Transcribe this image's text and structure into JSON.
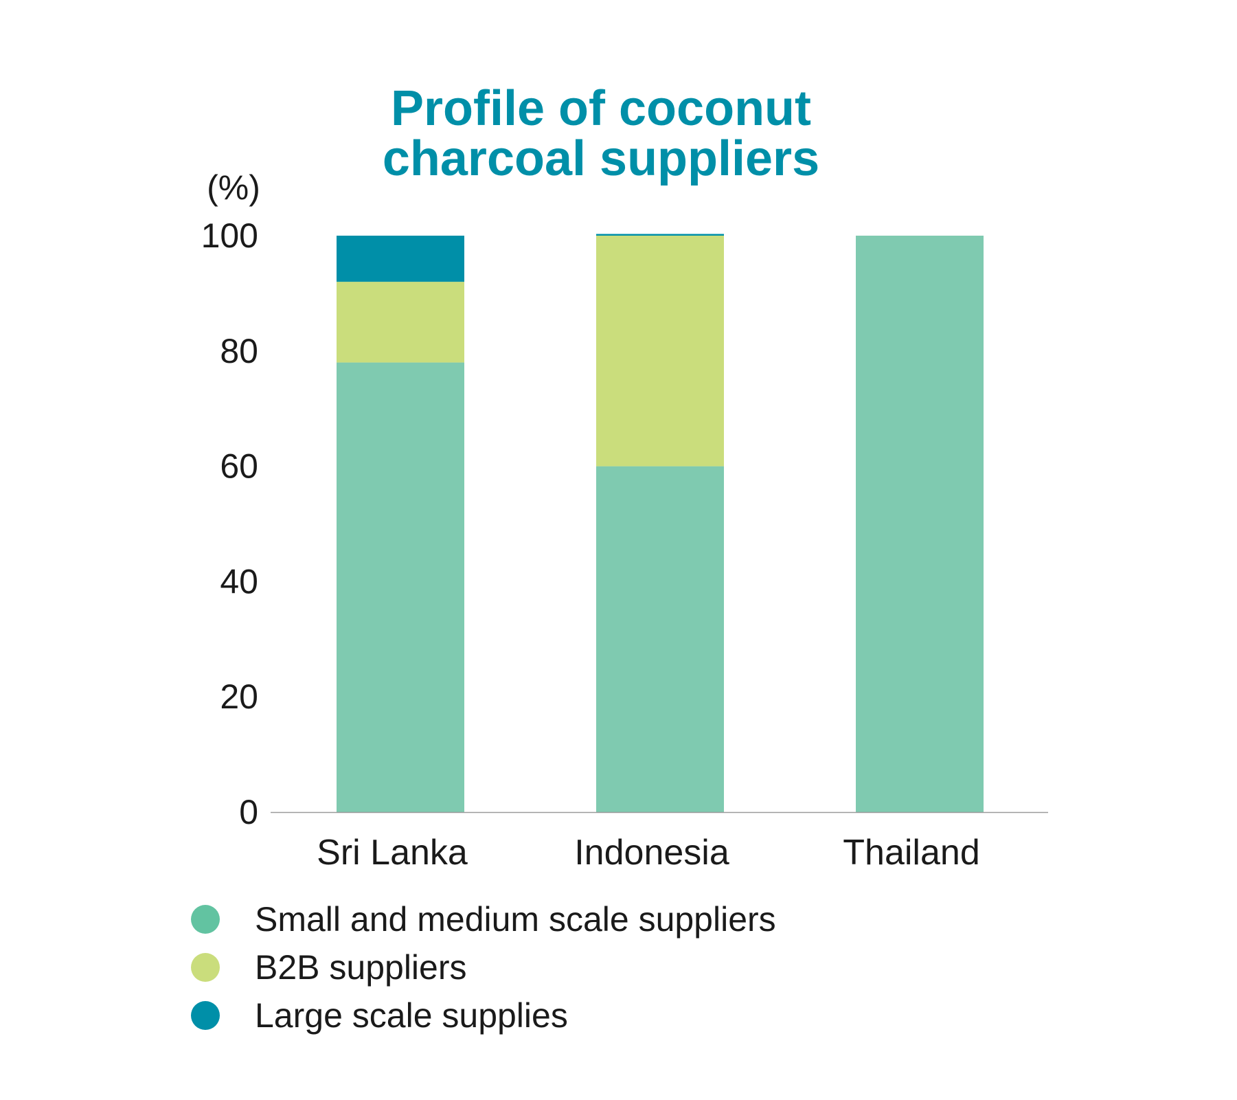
{
  "chart_data": {
    "type": "bar",
    "stacked": true,
    "title": "Profile of coconut charcoal suppliers",
    "title_lines": [
      "Profile of coconut",
      "charcoal suppliers"
    ],
    "ylabel": "(%)",
    "xlabel": "",
    "ylim": [
      0,
      100
    ],
    "yticks": [
      0,
      20,
      40,
      60,
      80,
      100
    ],
    "grid": false,
    "legend_position": "bottom-left",
    "categories": [
      "Sri Lanka",
      "Indonesia",
      "Thailand"
    ],
    "series": [
      {
        "name": "Small and medium scale suppliers",
        "color": "#7fcab0",
        "legend_color": "#62c3a1",
        "values": [
          78,
          60,
          100
        ]
      },
      {
        "name": "B2B suppliers",
        "color": "#cadd7c",
        "legend_color": "#cadd7c",
        "values": [
          14,
          40,
          0
        ]
      },
      {
        "name": "Large scale supplies",
        "color": "#008fa8",
        "legend_color": "#008fa8",
        "values": [
          8,
          0.3,
          0
        ]
      }
    ],
    "colors": {
      "title": "#008fa8",
      "axis": "#9a9a9a",
      "text": "#1a1a1a"
    }
  }
}
